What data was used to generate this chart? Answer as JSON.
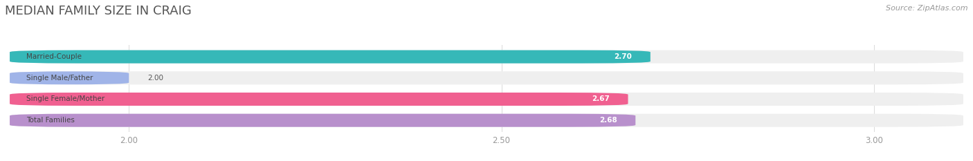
{
  "title": "MEDIAN FAMILY SIZE IN CRAIG",
  "source": "Source: ZipAtlas.com",
  "categories": [
    "Married-Couple",
    "Single Male/Father",
    "Single Female/Mother",
    "Total Families"
  ],
  "values": [
    2.7,
    2.0,
    2.67,
    2.68
  ],
  "bar_colors": [
    "#36b8b8",
    "#a0b4e8",
    "#f06090",
    "#b890cc"
  ],
  "xlim_min": 1.84,
  "xlim_max": 3.12,
  "xticks": [
    2.0,
    2.5,
    3.0
  ],
  "bar_height": 0.62,
  "background_color": "#ffffff",
  "bar_bg_color": "#efefef",
  "label_fontsize": 7.5,
  "tick_fontsize": 8.5,
  "title_fontsize": 13,
  "source_fontsize": 8,
  "label_dark_color": "#444444",
  "value_white_color": "#ffffff",
  "value_dark_color": "#555555",
  "grid_color": "#dddddd",
  "title_color": "#555555",
  "source_color": "#999999"
}
